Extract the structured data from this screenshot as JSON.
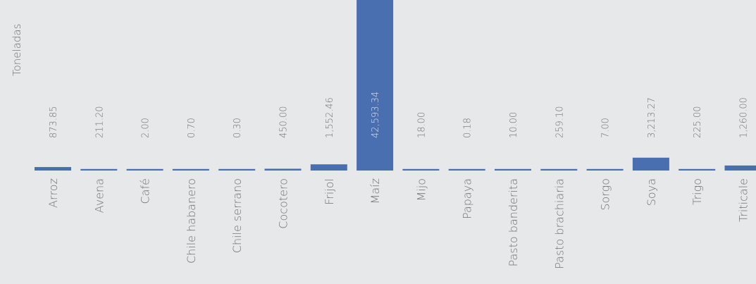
{
  "chart_data": {
    "type": "bar",
    "ylabel": "Toneladas",
    "categories": [
      "Arroz",
      "Avena",
      "Café",
      "Chile habanero",
      "Chile serrano",
      "Cocotero",
      "Frijol",
      "Maíz",
      "Mijo",
      "Papaya",
      "Pasto banderita",
      "Pasto brachiaria",
      "Sorgo",
      "Soya",
      "Trigo",
      "Triticale"
    ],
    "values": [
      873.85,
      211.2,
      2.0,
      0.7,
      0.3,
      450.0,
      1552.46,
      42593.34,
      18.0,
      0.18,
      10.0,
      259.1,
      7.0,
      3213.27,
      225.0,
      1260.0
    ],
    "value_labels": [
      "873.85",
      "211.20",
      "2.00",
      "0.70",
      "0.30",
      "450.00",
      "1,552.46",
      "42,593.34",
      "18.00",
      "0.18",
      "10.00",
      "259.10",
      "7.00",
      "3,213.27",
      "225.00",
      "1,260.00"
    ],
    "legend": "none",
    "grid": false,
    "bar_color": "#4a6fb0"
  }
}
